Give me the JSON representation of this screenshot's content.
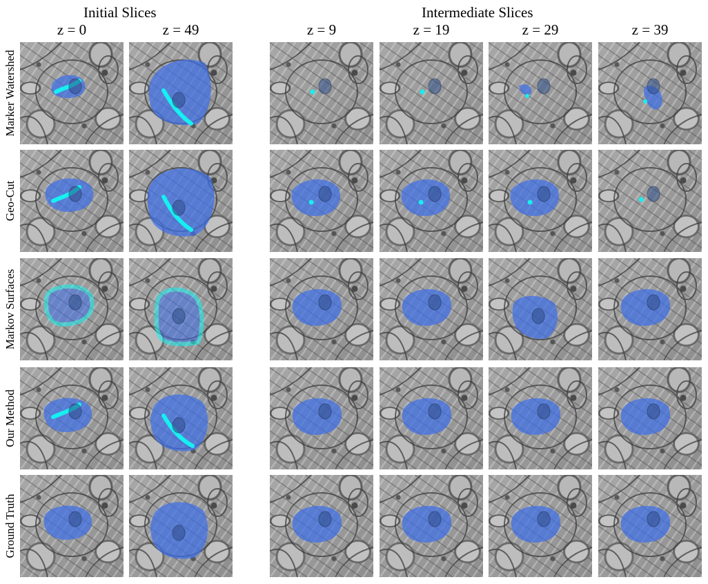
{
  "figure": {
    "groups": [
      {
        "id": "initial",
        "title": "Initial Slices"
      },
      {
        "id": "intermediate",
        "title": "Intermediate Slices"
      }
    ],
    "columns": [
      {
        "id": "z0",
        "label": "z = 0"
      },
      {
        "id": "z49",
        "label": "z = 49"
      },
      {
        "id": "z9",
        "label": "z = 9"
      },
      {
        "id": "z19",
        "label": "z = 19"
      },
      {
        "id": "z29",
        "label": "z = 29"
      },
      {
        "id": "z39",
        "label": "z = 39"
      }
    ],
    "rows": [
      {
        "id": "marker-watershed",
        "label": "Marker Watershed"
      },
      {
        "id": "geo-cut",
        "label": "Geo-Cut"
      },
      {
        "id": "markov-surfaces",
        "label": "Markov Surfaces"
      },
      {
        "id": "our-method",
        "label": "Our Method"
      },
      {
        "id": "ground-truth",
        "label": "Ground Truth"
      }
    ]
  },
  "colors": {
    "segmentation_overlay": "#3f6fe8",
    "user_annotation": "#16f0f0",
    "membrane": "#3c3c3c",
    "em_background": "#9a9a9a",
    "nucleus": "#2f4f8a"
  }
}
